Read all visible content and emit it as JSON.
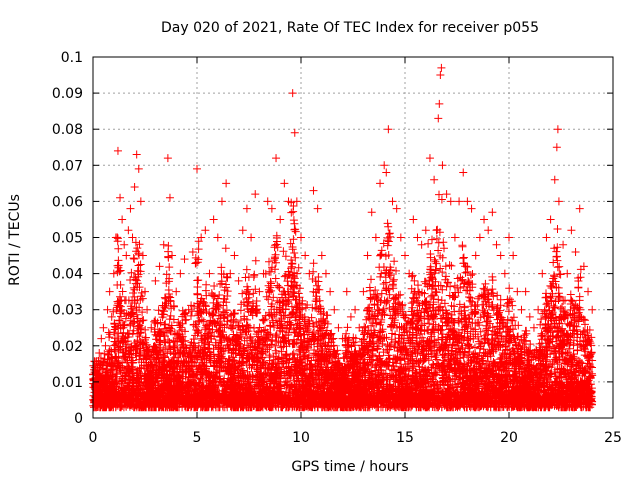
{
  "chart_data": {
    "type": "scatter",
    "title": "Day 020 of 2021, Rate Of TEC Index for receiver p055",
    "xlabel": "GPS time / hours",
    "ylabel": "ROTI / TECUs",
    "xlim": [
      0,
      25
    ],
    "ylim": [
      0,
      0.1
    ],
    "xticks": [
      0,
      5,
      10,
      15,
      20,
      25
    ],
    "xtick_labels": [
      "0",
      "5",
      "10",
      "15",
      "20",
      "25"
    ],
    "yticks": [
      0,
      0.01,
      0.02,
      0.03,
      0.04,
      0.05,
      0.06,
      0.07,
      0.08,
      0.09,
      0.1
    ],
    "ytick_labels": [
      "0",
      "0.01",
      "0.02",
      "0.03",
      "0.04",
      "0.05",
      "0.06",
      "0.07",
      "0.08",
      "0.09",
      "0.1"
    ],
    "grid": true,
    "marker": "plus",
    "color": "#ff0000",
    "series": [
      {
        "points": [
          [
            0.0,
            0.012
          ],
          [
            0.1,
            0.008
          ],
          [
            0.2,
            0.015
          ],
          [
            0.3,
            0.018
          ],
          [
            0.4,
            0.022
          ],
          [
            0.5,
            0.025
          ],
          [
            0.6,
            0.02
          ],
          [
            0.7,
            0.03
          ],
          [
            0.8,
            0.035
          ],
          [
            0.9,
            0.028
          ],
          [
            1.0,
            0.04
          ],
          [
            1.1,
            0.05
          ],
          [
            1.2,
            0.074
          ],
          [
            1.3,
            0.061
          ],
          [
            1.4,
            0.055
          ],
          [
            1.5,
            0.048
          ],
          [
            1.6,
            0.045
          ],
          [
            1.7,
            0.052
          ],
          [
            1.8,
            0.058
          ],
          [
            1.9,
            0.05
          ],
          [
            2.0,
            0.064
          ],
          [
            2.1,
            0.073
          ],
          [
            2.2,
            0.069
          ],
          [
            2.3,
            0.06
          ],
          [
            2.4,
            0.045
          ],
          [
            2.5,
            0.035
          ],
          [
            2.6,
            0.03
          ],
          [
            2.8,
            0.025
          ],
          [
            3.0,
            0.038
          ],
          [
            3.2,
            0.042
          ],
          [
            3.4,
            0.048
          ],
          [
            3.6,
            0.072
          ],
          [
            3.7,
            0.061
          ],
          [
            3.8,
            0.045
          ],
          [
            4.0,
            0.035
          ],
          [
            4.2,
            0.04
          ],
          [
            4.4,
            0.044
          ],
          [
            4.6,
            0.03
          ],
          [
            4.8,
            0.046
          ],
          [
            5.0,
            0.069
          ],
          [
            5.2,
            0.05
          ],
          [
            5.4,
            0.052
          ],
          [
            5.6,
            0.04
          ],
          [
            5.8,
            0.055
          ],
          [
            6.0,
            0.05
          ],
          [
            6.2,
            0.06
          ],
          [
            6.4,
            0.065
          ],
          [
            6.6,
            0.04
          ],
          [
            6.8,
            0.045
          ],
          [
            7.0,
            0.038
          ],
          [
            7.2,
            0.052
          ],
          [
            7.4,
            0.058
          ],
          [
            7.6,
            0.05
          ],
          [
            7.8,
            0.062
          ],
          [
            8.0,
            0.035
          ],
          [
            8.2,
            0.04
          ],
          [
            8.4,
            0.06
          ],
          [
            8.6,
            0.058
          ],
          [
            8.8,
            0.072
          ],
          [
            9.0,
            0.055
          ],
          [
            9.2,
            0.065
          ],
          [
            9.4,
            0.06
          ],
          [
            9.6,
            0.09
          ],
          [
            9.7,
            0.079
          ],
          [
            9.8,
            0.06
          ],
          [
            10.0,
            0.05
          ],
          [
            10.2,
            0.045
          ],
          [
            10.4,
            0.04
          ],
          [
            10.6,
            0.063
          ],
          [
            10.8,
            0.058
          ],
          [
            11.0,
            0.045
          ],
          [
            11.2,
            0.04
          ],
          [
            11.4,
            0.035
          ],
          [
            11.6,
            0.03
          ],
          [
            11.8,
            0.025
          ],
          [
            12.0,
            0.022
          ],
          [
            12.2,
            0.035
          ],
          [
            12.4,
            0.028
          ],
          [
            12.6,
            0.03
          ],
          [
            12.8,
            0.025
          ],
          [
            13.0,
            0.035
          ],
          [
            13.2,
            0.045
          ],
          [
            13.4,
            0.057
          ],
          [
            13.6,
            0.05
          ],
          [
            13.8,
            0.065
          ],
          [
            14.0,
            0.07
          ],
          [
            14.1,
            0.068
          ],
          [
            14.2,
            0.08
          ],
          [
            14.4,
            0.06
          ],
          [
            14.6,
            0.058
          ],
          [
            14.8,
            0.05
          ],
          [
            15.0,
            0.045
          ],
          [
            15.2,
            0.04
          ],
          [
            15.4,
            0.055
          ],
          [
            15.6,
            0.05
          ],
          [
            15.8,
            0.048
          ],
          [
            16.0,
            0.052
          ],
          [
            16.2,
            0.072
          ],
          [
            16.4,
            0.066
          ],
          [
            16.6,
            0.083
          ],
          [
            16.65,
            0.087
          ],
          [
            16.7,
            0.095
          ],
          [
            16.75,
            0.097
          ],
          [
            16.8,
            0.07
          ],
          [
            17.0,
            0.062
          ],
          [
            17.2,
            0.06
          ],
          [
            17.4,
            0.05
          ],
          [
            17.6,
            0.06
          ],
          [
            17.8,
            0.068
          ],
          [
            18.0,
            0.06
          ],
          [
            18.2,
            0.058
          ],
          [
            18.4,
            0.045
          ],
          [
            18.6,
            0.05
          ],
          [
            18.8,
            0.055
          ],
          [
            19.0,
            0.052
          ],
          [
            19.2,
            0.057
          ],
          [
            19.4,
            0.048
          ],
          [
            19.6,
            0.045
          ],
          [
            19.8,
            0.04
          ],
          [
            20.0,
            0.05
          ],
          [
            20.2,
            0.045
          ],
          [
            20.4,
            0.035
          ],
          [
            20.6,
            0.03
          ],
          [
            20.8,
            0.035
          ],
          [
            21.0,
            0.028
          ],
          [
            21.2,
            0.025
          ],
          [
            21.4,
            0.03
          ],
          [
            21.6,
            0.04
          ],
          [
            21.8,
            0.05
          ],
          [
            22.0,
            0.055
          ],
          [
            22.2,
            0.066
          ],
          [
            22.3,
            0.075
          ],
          [
            22.35,
            0.08
          ],
          [
            22.4,
            0.06
          ],
          [
            22.6,
            0.048
          ],
          [
            22.8,
            0.04
          ],
          [
            23.0,
            0.052
          ],
          [
            23.2,
            0.046
          ],
          [
            23.4,
            0.058
          ],
          [
            23.6,
            0.042
          ],
          [
            23.8,
            0.035
          ],
          [
            24.0,
            0.03
          ]
        ]
      }
    ]
  }
}
